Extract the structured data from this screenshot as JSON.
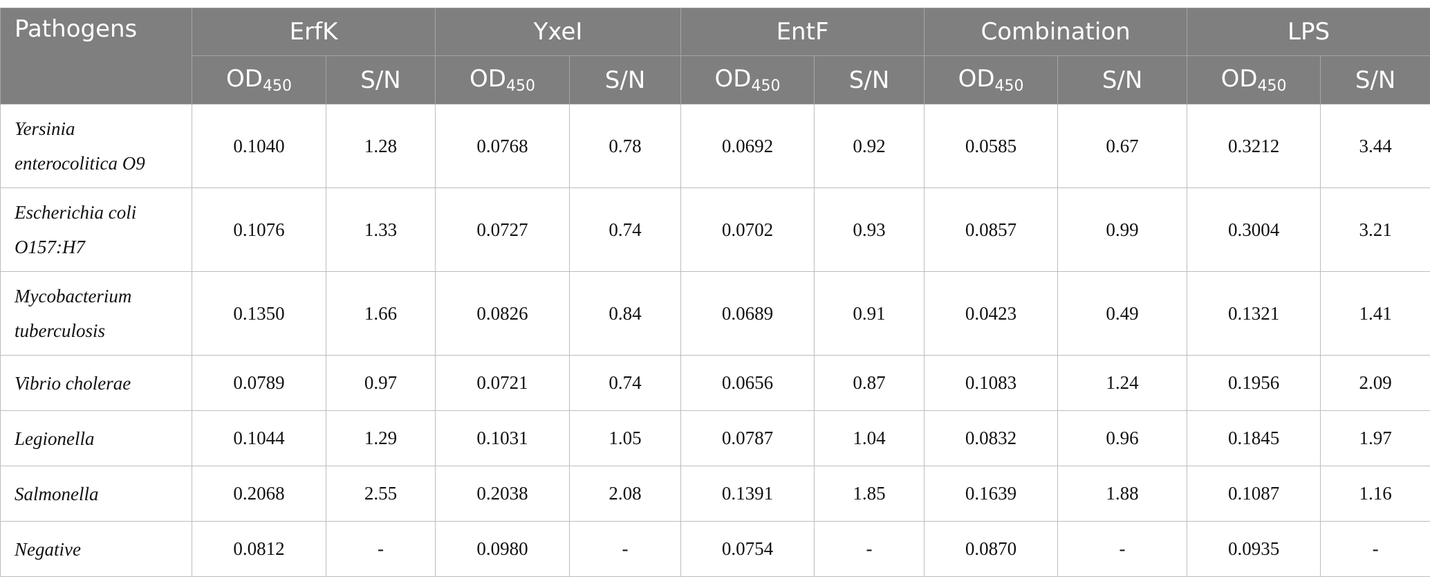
{
  "table": {
    "header": {
      "first": "Pathogens",
      "groups": [
        "ErfK",
        "YxeI",
        "EntF",
        "Combination",
        "LPS"
      ],
      "od": "OD",
      "od_sub": "450",
      "sn": "S/N"
    },
    "rows": [
      [
        "Yersinia enterocolitica O9",
        "0.1040",
        "1.28",
        "0.0768",
        "0.78",
        "0.0692",
        "0.92",
        "0.0585",
        "0.67",
        "0.3212",
        "3.44"
      ],
      [
        "Escherichia coli O157:H7",
        "0.1076",
        "1.33",
        "0.0727",
        "0.74",
        "0.0702",
        "0.93",
        "0.0857",
        "0.99",
        "0.3004",
        "3.21"
      ],
      [
        "Mycobacterium tuberculosis",
        "0.1350",
        "1.66",
        "0.0826",
        "0.84",
        "0.0689",
        "0.91",
        "0.0423",
        "0.49",
        "0.1321",
        "1.41"
      ],
      [
        "Vibrio cholerae",
        "0.0789",
        "0.97",
        "0.0721",
        "0.74",
        "0.0656",
        "0.87",
        "0.1083",
        "1.24",
        "0.1956",
        "2.09"
      ],
      [
        "Legionella",
        "0.1044",
        "1.29",
        "0.1031",
        "1.05",
        "0.0787",
        "1.04",
        "0.0832",
        "0.96",
        "0.1845",
        "1.97"
      ],
      [
        "Salmonella",
        "0.2068",
        "2.55",
        "0.2038",
        "2.08",
        "0.1391",
        "1.85",
        "0.1639",
        "1.88",
        "0.1087",
        "1.16"
      ],
      [
        "Negative",
        "0.0812",
        "-",
        "0.0980",
        "-",
        "0.0754",
        "-",
        "0.0870",
        "-",
        "0.0935",
        "-"
      ]
    ]
  }
}
